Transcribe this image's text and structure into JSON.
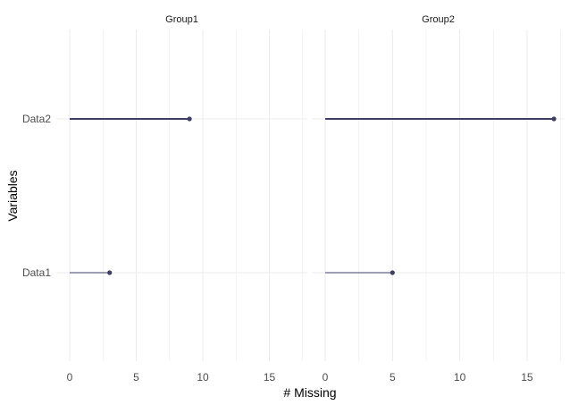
{
  "chart_data": {
    "type": "lollipop",
    "xlabel": "# Missing",
    "ylabel": "Variables",
    "grid": true,
    "facets": [
      {
        "label": "Group1",
        "xlim": [
          0,
          17.8
        ],
        "x_ticks": [
          0,
          5,
          10,
          15
        ],
        "categories": [
          "Data2",
          "Data1"
        ],
        "values": [
          9,
          3
        ]
      },
      {
        "label": "Group2",
        "xlim": [
          0,
          17.8
        ],
        "x_ticks": [
          0,
          5,
          10,
          15
        ],
        "categories": [
          "Data2",
          "Data1"
        ],
        "values": [
          17,
          5
        ]
      }
    ],
    "y_categories": [
      "Data2",
      "Data1"
    ]
  },
  "colors": {
    "segment": "#3f3f66",
    "point": "#3f3f66",
    "grid": "#ebebeb",
    "tick_text": "#4d4d4d"
  }
}
